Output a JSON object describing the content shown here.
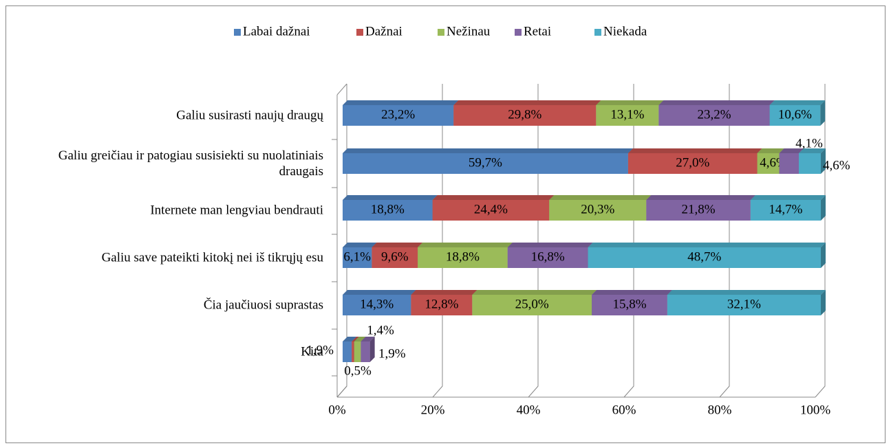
{
  "chart_data": {
    "type": "bar",
    "orientation": "horizontal",
    "stacked": true,
    "categories": [
      "Galiu susirasti naujų draugų",
      "Galiu greičiau ir patogiau susisiekti su nuolatiniais draugais",
      "Internete man lengviau bendrauti",
      "Galiu save pateikti kitokį nei iš tikrųjų esu",
      "Čia jaučiuosi suprastas",
      "Kita"
    ],
    "series": [
      {
        "name": "Labai dažnai",
        "color": "#4f81bd",
        "values": [
          23.2,
          59.7,
          18.8,
          6.1,
          14.3,
          1.9
        ],
        "value_labels": [
          "23,2%",
          "59,7%",
          "18,8%",
          "6,1%",
          "14,3%",
          "1,9%"
        ]
      },
      {
        "name": "Dažnai",
        "color": "#c0504d",
        "values": [
          29.8,
          27.0,
          24.4,
          9.6,
          12.8,
          0.5
        ],
        "value_labels": [
          "29,8%",
          "27,0%",
          "24,4%",
          "9,6%",
          "12,8%",
          "0,5%"
        ]
      },
      {
        "name": "Nežinau",
        "color": "#9bbb59",
        "values": [
          13.1,
          4.6,
          20.3,
          18.8,
          25.0,
          1.4
        ],
        "value_labels": [
          "13,1%",
          "4,6%",
          "20,3%",
          "18,8%",
          "25,0%",
          "1,4%"
        ]
      },
      {
        "name": "Retai",
        "color": "#8064a2",
        "values": [
          23.2,
          4.1,
          21.8,
          16.8,
          15.8,
          1.9
        ],
        "value_labels": [
          "23,2%",
          "4,1%",
          "21,8%",
          "16,8%",
          "15,8%",
          "1,9%"
        ]
      },
      {
        "name": "Niekada",
        "color": "#4bacc6",
        "values": [
          10.6,
          4.6,
          14.7,
          48.7,
          32.1,
          null
        ],
        "value_labels": [
          "10,6%",
          "4,6%",
          "14,7%",
          "48,7%",
          "32,1%",
          null
        ]
      }
    ],
    "xlim": [
      0,
      100
    ],
    "xticks": [
      {
        "value": 0,
        "label": "0%"
      },
      {
        "value": 20,
        "label": "20%"
      },
      {
        "value": 40,
        "label": "40%"
      },
      {
        "value": 60,
        "label": "60%"
      },
      {
        "value": 80,
        "label": "80%"
      },
      {
        "value": 100,
        "label": "100%"
      }
    ],
    "grid": true,
    "legend": "top"
  }
}
